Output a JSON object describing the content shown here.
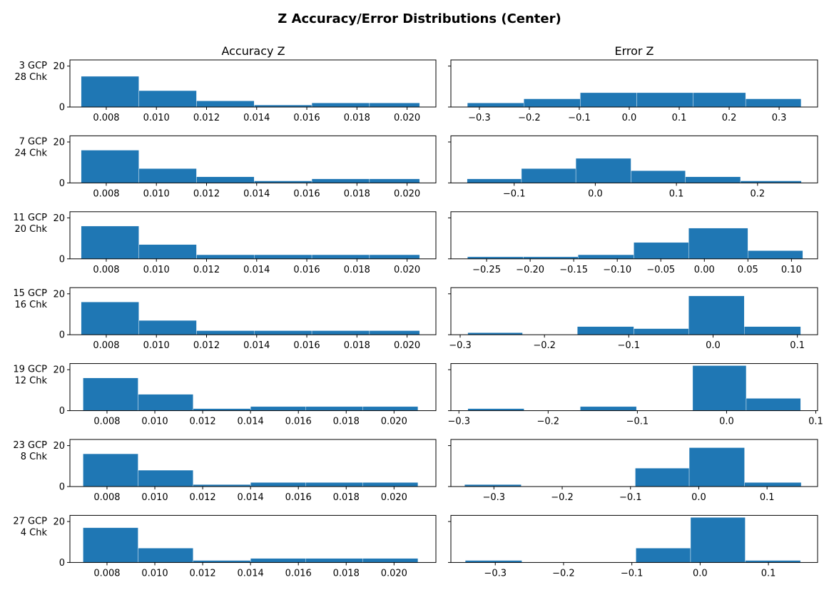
{
  "chart_data": {
    "type": "bar",
    "title": "Z Accuracy/Error Distributions (Center)",
    "column_titles": [
      "Accuracy Z",
      "Error Z"
    ],
    "bar_color": "#1f77b4",
    "rows": [
      {
        "label_line1": "3 GCP",
        "label_line2": "28 Chk",
        "accuracy": {
          "ylim": [
            0,
            23
          ],
          "yticks": [
            "0",
            "20"
          ],
          "xlim": [
            0.00655,
            0.02115
          ],
          "xticks": [
            0.008,
            0.01,
            0.012,
            0.014,
            0.016,
            0.018,
            0.02
          ],
          "xtick_labels": [
            "0.008",
            "0.010",
            "0.012",
            "0.014",
            "0.016",
            "0.018",
            "0.020"
          ],
          "bin_edges": [
            0.007,
            0.0093,
            0.0116,
            0.0139,
            0.0162,
            0.0185,
            0.0205
          ],
          "counts": [
            15,
            8,
            3,
            1,
            2,
            2
          ]
        },
        "error": {
          "ylim": [
            0,
            23
          ],
          "xlim": [
            -0.357,
            0.377
          ],
          "xticks": [
            -0.3,
            -0.2,
            -0.1,
            0.0,
            0.1,
            0.2,
            0.3
          ],
          "xtick_labels": [
            "−0.3",
            "−0.2",
            "−0.1",
            "0.0",
            "0.1",
            "0.2",
            "0.3"
          ],
          "bin_edges": [
            -0.324,
            -0.211,
            -0.098,
            0.015,
            0.128,
            0.233,
            0.344
          ],
          "counts": [
            2,
            4,
            7,
            7,
            7,
            4
          ]
        }
      },
      {
        "label_line1": "7 GCP",
        "label_line2": "24 Chk",
        "accuracy": {
          "ylim": [
            0,
            23
          ],
          "yticks": [
            "0",
            "20"
          ],
          "xlim": [
            0.00655,
            0.02115
          ],
          "xticks": [
            0.008,
            0.01,
            0.012,
            0.014,
            0.016,
            0.018,
            0.02
          ],
          "xtick_labels": [
            "0.008",
            "0.010",
            "0.012",
            "0.014",
            "0.016",
            "0.018",
            "0.020"
          ],
          "bin_edges": [
            0.007,
            0.0093,
            0.0116,
            0.0139,
            0.0162,
            0.0185,
            0.0205
          ],
          "counts": [
            16,
            7,
            3,
            1,
            2,
            2
          ]
        },
        "error": {
          "ylim": [
            0,
            23
          ],
          "xlim": [
            -0.178,
            0.274
          ],
          "xticks": [
            -0.1,
            0.0,
            0.1,
            0.2
          ],
          "xtick_labels": [
            "−0.1",
            "0.0",
            "0.1",
            "0.2"
          ],
          "bin_edges": [
            -0.158,
            -0.091,
            -0.024,
            0.044,
            0.111,
            0.179,
            0.254
          ],
          "counts": [
            2,
            7,
            12,
            6,
            3,
            1
          ]
        }
      },
      {
        "label_line1": "11 GCP",
        "label_line2": "20 Chk",
        "accuracy": {
          "ylim": [
            0,
            23
          ],
          "yticks": [
            "0",
            "20"
          ],
          "xlim": [
            0.00655,
            0.02115
          ],
          "xticks": [
            0.008,
            0.01,
            0.012,
            0.014,
            0.016,
            0.018,
            0.02
          ],
          "xtick_labels": [
            "0.008",
            "0.010",
            "0.012",
            "0.014",
            "0.016",
            "0.018",
            "0.020"
          ],
          "bin_edges": [
            0.007,
            0.0093,
            0.0116,
            0.0139,
            0.0162,
            0.0185,
            0.0205
          ],
          "counts": [
            16,
            7,
            2,
            2,
            2,
            2
          ]
        },
        "error": {
          "ylim": [
            0,
            23
          ],
          "xlim": [
            -0.291,
            0.13
          ],
          "xticks": [
            -0.25,
            -0.2,
            -0.15,
            -0.1,
            -0.05,
            0.0,
            0.05,
            0.1
          ],
          "xtick_labels": [
            "−0.25",
            "−0.20",
            "−0.15",
            "−0.10",
            "−0.05",
            "0.00",
            "0.05",
            "0.10"
          ],
          "bin_edges": [
            -0.272,
            -0.208,
            -0.145,
            -0.081,
            -0.018,
            0.05,
            0.113
          ],
          "counts": [
            1,
            1,
            2,
            8,
            15,
            4
          ]
        }
      },
      {
        "label_line1": "15 GCP",
        "label_line2": "16 Chk",
        "accuracy": {
          "ylim": [
            0,
            23
          ],
          "yticks": [
            "0",
            "20"
          ],
          "xlim": [
            0.00655,
            0.02115
          ],
          "xticks": [
            0.008,
            0.01,
            0.012,
            0.014,
            0.016,
            0.018,
            0.02
          ],
          "xtick_labels": [
            "0.008",
            "0.010",
            "0.012",
            "0.014",
            "0.016",
            "0.018",
            "0.020"
          ],
          "bin_edges": [
            0.007,
            0.0093,
            0.0116,
            0.0139,
            0.0162,
            0.0185,
            0.0205
          ],
          "counts": [
            16,
            7,
            2,
            2,
            2,
            2
          ]
        },
        "error": {
          "ylim": [
            0,
            23
          ],
          "xlim": [
            -0.311,
            0.124
          ],
          "xticks": [
            -0.3,
            -0.2,
            -0.1,
            0.0,
            0.1
          ],
          "xtick_labels": [
            "−0.3",
            "−0.2",
            "−0.1",
            "0.0",
            "0.1"
          ],
          "bin_edges": [
            -0.291,
            -0.226,
            -0.161,
            -0.094,
            -0.029,
            0.037,
            0.104
          ],
          "counts": [
            1,
            0,
            4,
            3,
            19,
            4
          ]
        }
      },
      {
        "label_line1": "19 GCP",
        "label_line2": "12 Chk",
        "accuracy": {
          "ylim": [
            0,
            23
          ],
          "yticks": [
            "0",
            "20"
          ],
          "xlim": [
            0.00645,
            0.02175
          ],
          "xticks": [
            0.008,
            0.01,
            0.012,
            0.014,
            0.016,
            0.018,
            0.02
          ],
          "xtick_labels": [
            "0.008",
            "0.010",
            "0.012",
            "0.014",
            "0.016",
            "0.018",
            "0.020"
          ],
          "bin_edges": [
            0.007,
            0.0093,
            0.0116,
            0.014,
            0.0163,
            0.0187,
            0.021
          ],
          "counts": [
            16,
            8,
            1,
            2,
            2,
            2
          ]
        },
        "error": {
          "ylim": [
            0,
            23
          ],
          "xlim": [
            -0.309,
            0.102
          ],
          "xticks": [
            -0.3,
            -0.2,
            -0.1,
            0.0,
            0.1
          ],
          "xtick_labels": [
            "−0.3",
            "−0.2",
            "−0.1",
            "0.0",
            "0.1"
          ],
          "bin_edges": [
            -0.29,
            -0.227,
            -0.164,
            -0.101,
            -0.038,
            0.022,
            0.083
          ],
          "counts": [
            1,
            0,
            2,
            0,
            22,
            6
          ]
        }
      },
      {
        "label_line1": "23 GCP",
        "label_line2": "8 Chk",
        "accuracy": {
          "ylim": [
            0,
            23
          ],
          "yticks": [
            "0",
            "20"
          ],
          "xlim": [
            0.00645,
            0.02175
          ],
          "xticks": [
            0.008,
            0.01,
            0.012,
            0.014,
            0.016,
            0.018,
            0.02
          ],
          "xtick_labels": [
            "0.008",
            "0.010",
            "0.012",
            "0.014",
            "0.016",
            "0.018",
            "0.020"
          ],
          "bin_edges": [
            0.007,
            0.0093,
            0.0116,
            0.014,
            0.0163,
            0.0187,
            0.021
          ],
          "counts": [
            16,
            8,
            1,
            2,
            2,
            2
          ]
        },
        "error": {
          "ylim": [
            0,
            23
          ],
          "xlim": [
            -0.363,
            0.174
          ],
          "xticks": [
            -0.3,
            -0.2,
            -0.1,
            0.0,
            0.1
          ],
          "xtick_labels": [
            "−0.3",
            "−0.2",
            "−0.1",
            "0.0",
            "0.1"
          ],
          "bin_edges": [
            -0.343,
            -0.26,
            -0.177,
            -0.093,
            -0.014,
            0.067,
            0.15
          ],
          "counts": [
            1,
            0,
            0,
            9,
            19,
            2
          ]
        }
      },
      {
        "label_line1": "27 GCP",
        "label_line2": "4 Chk",
        "accuracy": {
          "ylim": [
            0,
            23
          ],
          "yticks": [
            "0",
            "20"
          ],
          "xlim": [
            0.00645,
            0.02175
          ],
          "xticks": [
            0.008,
            0.01,
            0.012,
            0.014,
            0.016,
            0.018,
            0.02
          ],
          "xtick_labels": [
            "0.008",
            "0.010",
            "0.012",
            "0.014",
            "0.016",
            "0.018",
            "0.020"
          ],
          "bin_edges": [
            0.007,
            0.0093,
            0.0116,
            0.014,
            0.0163,
            0.0187,
            0.021
          ],
          "counts": [
            17,
            7,
            1,
            2,
            2,
            2
          ]
        },
        "error": {
          "ylim": [
            0,
            23
          ],
          "xlim": [
            -0.365,
            0.172
          ],
          "xticks": [
            -0.3,
            -0.2,
            -0.1,
            0.0,
            0.1
          ],
          "xtick_labels": [
            "−0.3",
            "−0.2",
            "−0.1",
            "0.0",
            "0.1"
          ],
          "bin_edges": [
            -0.344,
            -0.261,
            -0.177,
            -0.094,
            -0.014,
            0.066,
            0.147
          ],
          "counts": [
            1,
            0,
            0,
            7,
            22,
            1
          ]
        }
      }
    ]
  }
}
